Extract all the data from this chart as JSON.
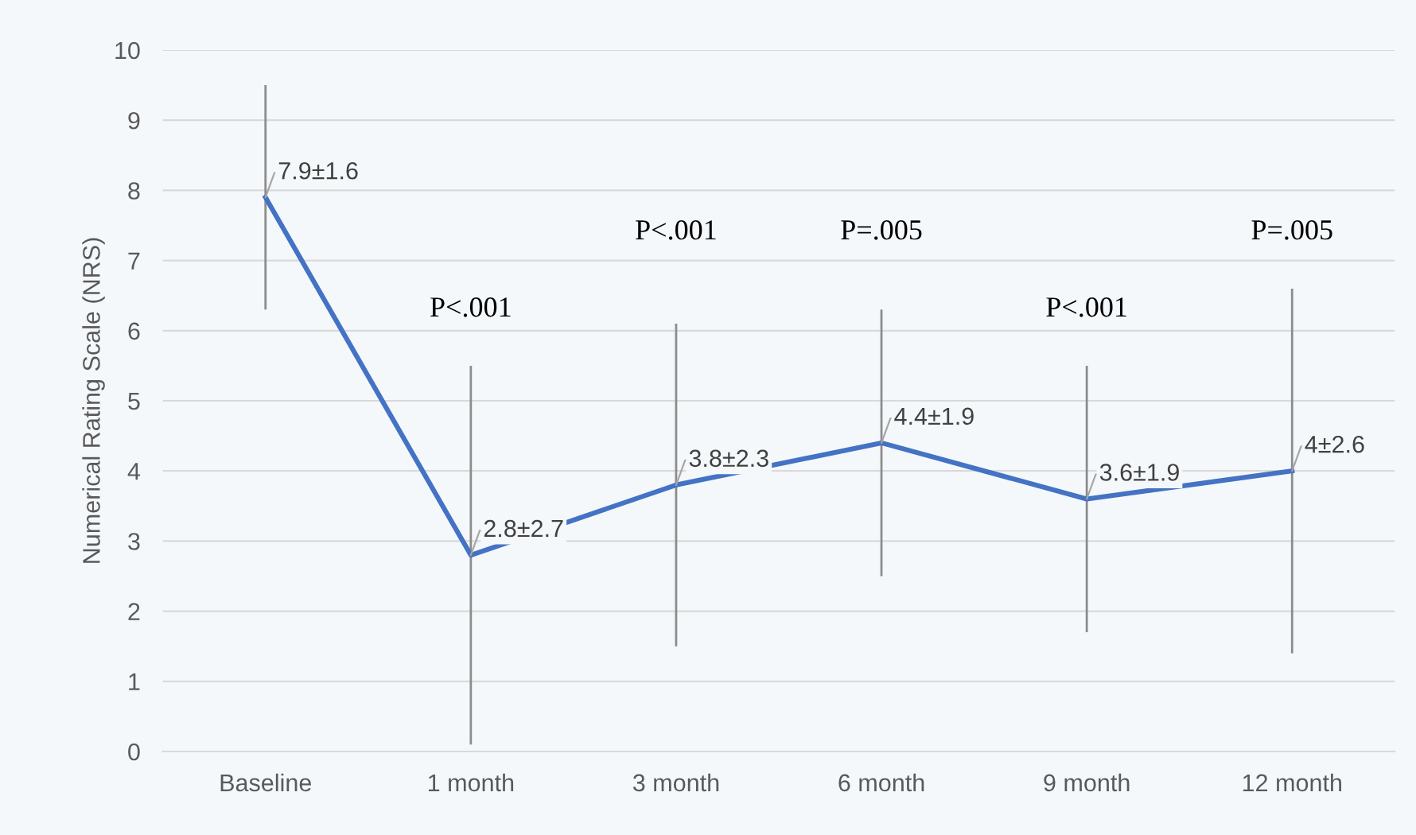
{
  "chart_data": {
    "type": "line",
    "ylabel": "Numerical Rating Scale (NRS)",
    "categories": [
      "Baseline",
      "1 month",
      "3 month",
      "6 month",
      "9 month",
      "12 month"
    ],
    "series": [
      {
        "color": "#4472c4",
        "values": [
          7.9,
          2.8,
          3.8,
          4.4,
          3.6,
          4.0
        ],
        "errors": [
          1.6,
          2.7,
          2.3,
          1.9,
          1.9,
          2.6
        ],
        "value_labels": [
          "7.9±1.6",
          "2.8±2.7",
          "3.8±2.3",
          "4.4±1.9",
          "3.6±1.9",
          "4±2.6"
        ]
      }
    ],
    "annotations": [
      "P<.001",
      "P<.001",
      "P=.005",
      "P<.001",
      "P=.005"
    ],
    "ylim": [
      0,
      10
    ],
    "yticks": [
      0,
      1,
      2,
      3,
      4,
      5,
      6,
      7,
      8,
      9,
      10
    ],
    "grid": "y",
    "marker": "none",
    "line_style": "solid",
    "legend": false
  }
}
